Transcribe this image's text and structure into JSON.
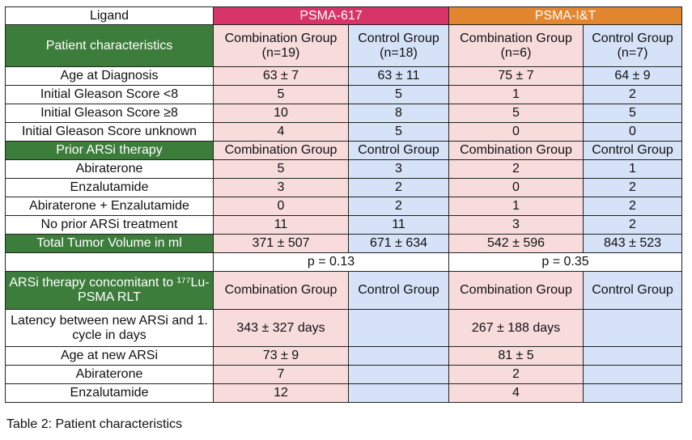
{
  "header": {
    "ligand": "Ligand",
    "psma617": "PSMA-617",
    "psmait": "PSMA-I&T"
  },
  "patient": {
    "title": "Patient characteristics",
    "groups": [
      {
        "name": "Combination Group",
        "n": "(n=19)"
      },
      {
        "name": "Control Group",
        "n": "(n=18)"
      },
      {
        "name": "Combination Group",
        "n": "(n=6)"
      },
      {
        "name": "Control Group",
        "n": "(n=7)"
      }
    ],
    "rows": [
      {
        "label": "Age at Diagnosis",
        "values": [
          "63 ± 7",
          "63 ± 11",
          "75 ± 7",
          "64 ± 9"
        ]
      },
      {
        "label": "Initial Gleason Score <8",
        "values": [
          "5",
          "5",
          "1",
          "2"
        ]
      },
      {
        "label": "Initial Gleason Score ≥8",
        "values": [
          "10",
          "8",
          "5",
          "5"
        ]
      },
      {
        "label": "Initial Gleason Score unknown",
        "values": [
          "4",
          "5",
          "0",
          "0"
        ]
      }
    ]
  },
  "prior": {
    "title": "Prior ARSi therapy",
    "groups": [
      "Combination Group",
      "Control Group",
      "Combination Group",
      "Control Group"
    ],
    "rows": [
      {
        "label": "Abiraterone",
        "values": [
          "5",
          "3",
          "2",
          "1"
        ]
      },
      {
        "label": "Enzalutamide",
        "values": [
          "3",
          "2",
          "0",
          "2"
        ]
      },
      {
        "label": "Abiraterone + Enzalutamide",
        "values": [
          "0",
          "2",
          "1",
          "2"
        ]
      },
      {
        "label": "No prior ARSi treatment",
        "values": [
          "11",
          "11",
          "3",
          "2"
        ]
      }
    ]
  },
  "tumor": {
    "label": "Total Tumor Volume in ml",
    "values": [
      "371 ± 507",
      "671 ± 634",
      "542 ± 596",
      "843 ± 523"
    ],
    "p617": "p = 0.13",
    "pit": "p = 0.35"
  },
  "concomitant": {
    "title": "ARSi therapy concomitant to ¹⁷⁷Lu-PSMA RLT",
    "groups": [
      "Combination Group",
      "Control Group",
      "Combination Group",
      "Control Group"
    ],
    "rows": [
      {
        "label": "Latency between new ARSi and 1. cycle in days",
        "values": [
          "343 ± 327 days",
          "",
          "267 ± 188 days",
          ""
        ]
      },
      {
        "label": "Age at new ARSi",
        "values": [
          "73 ± 9",
          "",
          "81 ± 5",
          ""
        ]
      },
      {
        "label": "Abiraterone",
        "values": [
          "7",
          "",
          "2",
          ""
        ]
      },
      {
        "label": "Enzalutamide",
        "values": [
          "12",
          "",
          "4",
          ""
        ]
      }
    ]
  },
  "caption": "Table 2: Patient characteristics"
}
